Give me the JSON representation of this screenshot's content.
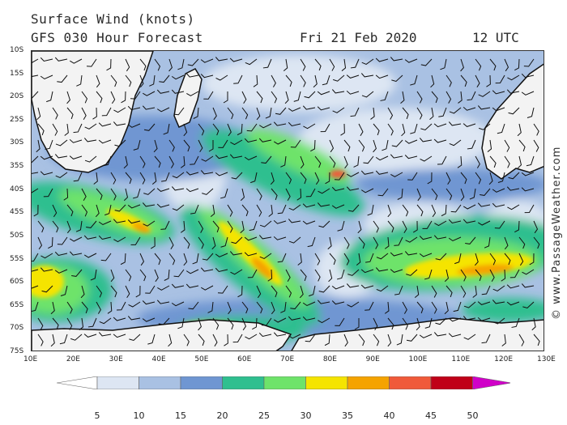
{
  "header": {
    "title": "Surface Wind (knots)",
    "subtitle": "GFS 030 Hour Forecast",
    "date": "Fri 21 Feb 2020",
    "time": "12 UTC"
  },
  "credit": "© www.PassageWeather.com",
  "map": {
    "lat_labels": [
      "10S",
      "15S",
      "20S",
      "25S",
      "30S",
      "35S",
      "40S",
      "45S",
      "50S",
      "55S",
      "60S",
      "65S",
      "70S",
      "75S"
    ],
    "lon_labels": [
      "10E",
      "20E",
      "30E",
      "40E",
      "50E",
      "60E",
      "70E",
      "80E",
      "90E",
      "100E",
      "110E",
      "120E",
      "130E"
    ],
    "lat_range": [
      -10,
      -75
    ],
    "lon_range": [
      10,
      130
    ]
  },
  "legend": {
    "labels": [
      "5",
      "10",
      "15",
      "20",
      "25",
      "30",
      "35",
      "40",
      "45",
      "50"
    ],
    "colors": [
      "#ffffff",
      "#dde6f3",
      "#a9c1e3",
      "#6f96d2",
      "#2fbf8f",
      "#6ee36a",
      "#f5e400",
      "#f5a300",
      "#f05a3a",
      "#c00018",
      "#d000c8"
    ]
  }
}
